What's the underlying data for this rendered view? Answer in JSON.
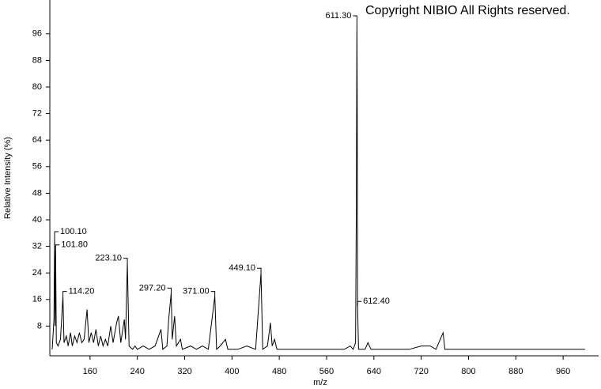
{
  "chart_data": {
    "type": "line",
    "annotation": "Copyright NIBIO All Rights reserved.",
    "x_label": "m/z",
    "y_label": "Relative Intensity (%)",
    "xlim": [
      92,
      1020
    ],
    "ylim": [
      0,
      105
    ],
    "xticks": [
      160,
      240,
      320,
      400,
      480,
      560,
      640,
      720,
      800,
      880,
      960
    ],
    "yticks": [
      8,
      16,
      24,
      32,
      40,
      48,
      56,
      64,
      72,
      80,
      88,
      96
    ],
    "grid": false,
    "color": "#000000",
    "x": [
      96,
      99,
      100.1,
      101,
      101.8,
      103,
      106,
      110,
      114.2,
      116,
      120,
      123,
      127,
      130,
      134,
      138,
      142,
      146,
      150,
      155,
      158,
      162,
      166,
      170,
      174,
      178,
      182,
      186,
      190,
      195,
      199,
      205,
      208,
      212,
      218,
      220,
      223.1,
      226,
      232,
      236,
      240,
      250,
      260,
      270,
      280,
      283,
      290,
      293,
      297.2,
      299,
      303,
      306,
      313,
      316,
      330,
      340,
      350,
      360,
      371,
      374,
      380,
      389,
      393,
      410,
      425,
      440,
      449.1,
      452,
      460,
      465,
      468,
      472,
      476,
      490,
      520,
      560,
      590,
      600,
      605,
      609,
      610.3,
      611.3,
      611.8,
      612.4,
      614,
      625,
      630,
      635,
      660,
      700,
      720,
      735,
      745,
      757,
      760,
      800,
      840,
      880,
      920,
      960,
      997
    ],
    "values": [
      1,
      10,
      35,
      8,
      31,
      3,
      2,
      4,
      17,
      3,
      5,
      2,
      6,
      2,
      5,
      3,
      6,
      3,
      4,
      13,
      3,
      6,
      3,
      7,
      2,
      5,
      2,
      4,
      2,
      8,
      3,
      9,
      11,
      3,
      10,
      4,
      27,
      2,
      1,
      2,
      1,
      2,
      1,
      2,
      7,
      1,
      2,
      10,
      18,
      4,
      11,
      2,
      4,
      1,
      2,
      1,
      2,
      1,
      17,
      1,
      2,
      4,
      1,
      1,
      2,
      1,
      24,
      1,
      2,
      9,
      2,
      4,
      1,
      1,
      1,
      1,
      1,
      2,
      1,
      3,
      44,
      100,
      75,
      14,
      1,
      1,
      3,
      1,
      1,
      1,
      2,
      2,
      1,
      6,
      1,
      1,
      1,
      1,
      1,
      1,
      1
    ],
    "peak_labels": [
      {
        "text": "100.10",
        "x": 100.1,
        "side": "right"
      },
      {
        "text": "101.80",
        "x": 101.8,
        "side": "right"
      },
      {
        "text": "114.20",
        "x": 114.2,
        "side": "right"
      },
      {
        "text": "223.10",
        "x": 223.1,
        "side": "left"
      },
      {
        "text": "297.20",
        "x": 297.2,
        "side": "left"
      },
      {
        "text": "371.00",
        "x": 371,
        "side": "left"
      },
      {
        "text": "449.10",
        "x": 449.1,
        "side": "left"
      },
      {
        "text": "611.30",
        "x": 611.3,
        "side": "left"
      },
      {
        "text": "612.40",
        "x": 612.4,
        "side": "right"
      }
    ]
  }
}
